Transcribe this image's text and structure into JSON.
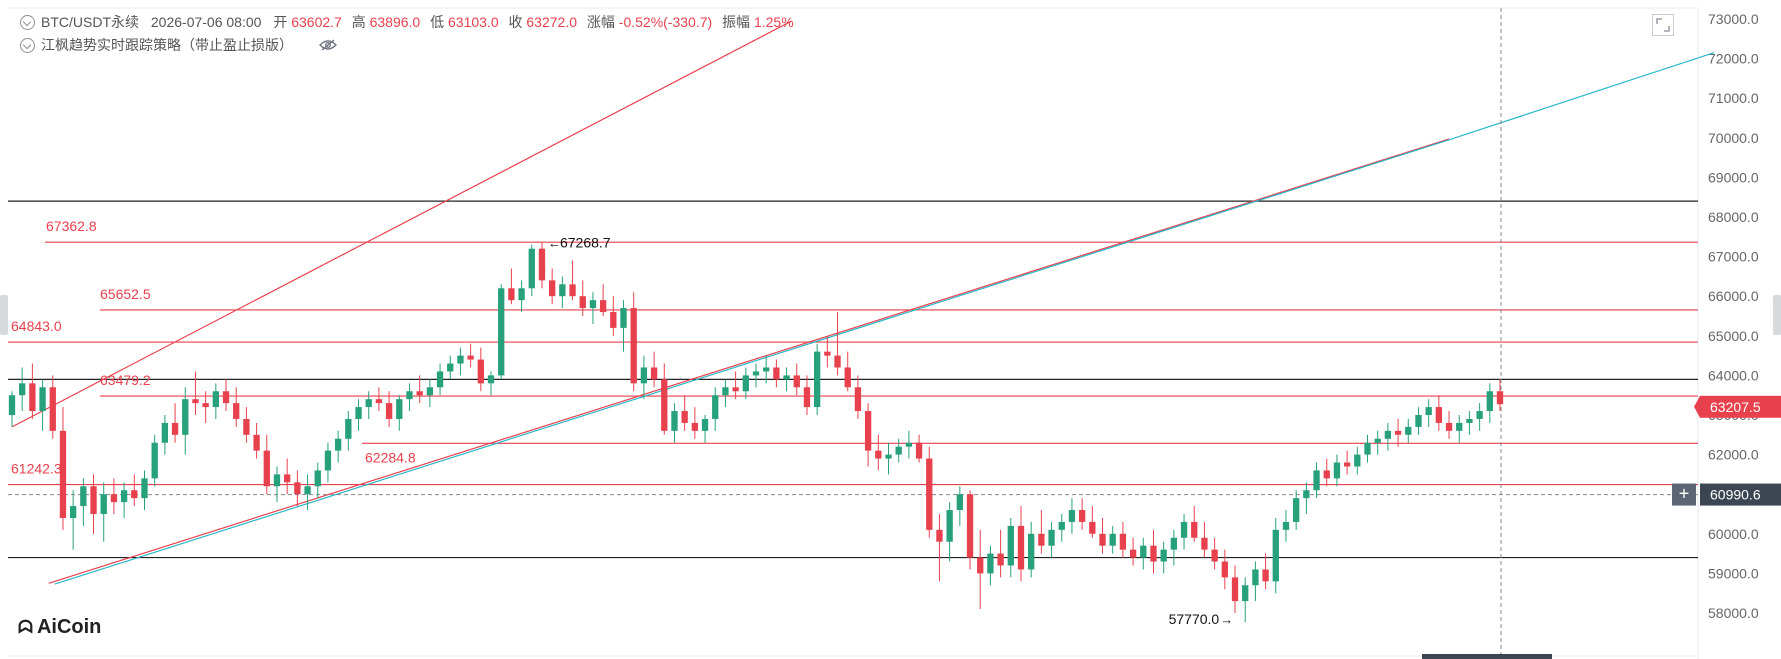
{
  "header": {
    "symbol": "BTC/USDT永续",
    "datetime": "2026-07-06 08:00",
    "open_label": "开",
    "open": "63602.7",
    "high_label": "高",
    "high": "63896.0",
    "low_label": "低",
    "low": "63103.0",
    "close_label": "收",
    "close": "63272.0",
    "change_label": "涨幅",
    "change": "-0.52%(-330.7)",
    "amplitude_label": "振幅",
    "amplitude": "1.25%",
    "indicator": "江枫趋势实时跟踪策略（带止盈止损版）"
  },
  "logo": "AiCoin",
  "icons": [
    "chevron-circle-icon",
    "eye-off-icon",
    "fullscreen-icon",
    "crosshair-plus-icon"
  ],
  "colors": {
    "up": "#26a17b",
    "down": "#e8414e",
    "channel": "#2ab7c9",
    "level_black": "#222222"
  },
  "chart_data": {
    "type": "candlestick",
    "ylim": [
      57600,
      73200
    ],
    "y_ticks": [
      "73000.0",
      "72000.0",
      "71000.0",
      "70000.0",
      "69000.0",
      "68000.0",
      "67000.0",
      "66000.0",
      "65000.0",
      "64000.0",
      "63000.0",
      "62000.0",
      "61000.0",
      "60000.0",
      "59000.0",
      "58000.0"
    ],
    "y_tick_values": [
      73000,
      72000,
      71000,
      70000,
      69000,
      68000,
      67000,
      66000,
      65000,
      64000,
      63000,
      62000,
      61000,
      60000,
      59000,
      58000
    ],
    "current_price": "63207.5",
    "crosshair_price": "60990.6",
    "crosshair_value": 60990.6,
    "red_levels": [
      {
        "label": "67362.8",
        "value": 67362.8
      },
      {
        "label": "65652.5",
        "value": 65652.5
      },
      {
        "label": "64843.0",
        "value": 64843.0
      },
      {
        "label": "63479.2",
        "value": 63479.2
      },
      {
        "label": "62284.8",
        "value": 62284.8
      },
      {
        "label": "61242.3",
        "value": 61242.3
      }
    ],
    "black_levels": [
      68400,
      63900,
      59400
    ],
    "annotations": [
      {
        "label": "67268.7",
        "value": 67268.7
      },
      {
        "label": "57770.0",
        "value": 57770.0
      }
    ],
    "candles_ohlc": [
      [
        63000,
        63600,
        62700,
        63500
      ],
      [
        63500,
        64200,
        63100,
        63800
      ],
      [
        63800,
        64300,
        62900,
        63100
      ],
      [
        63100,
        63900,
        62600,
        63700
      ],
      [
        63700,
        64000,
        62400,
        62600
      ],
      [
        62600,
        63200,
        60100,
        60400
      ],
      [
        60400,
        61100,
        59600,
        60700
      ],
      [
        60700,
        61400,
        60200,
        61200
      ],
      [
        61200,
        61500,
        60000,
        60500
      ],
      [
        60500,
        61300,
        59800,
        61000
      ],
      [
        61000,
        61400,
        60500,
        60800
      ],
      [
        60800,
        61300,
        60400,
        61100
      ],
      [
        61100,
        61500,
        60700,
        60900
      ],
      [
        60900,
        61600,
        60600,
        61400
      ],
      [
        61400,
        62500,
        61200,
        62300
      ],
      [
        62300,
        63000,
        62000,
        62800
      ],
      [
        62800,
        63300,
        62300,
        62500
      ],
      [
        62500,
        63700,
        62000,
        63400
      ],
      [
        63400,
        64100,
        63000,
        63300
      ],
      [
        63300,
        63600,
        62800,
        63200
      ],
      [
        63200,
        63800,
        62900,
        63600
      ],
      [
        63600,
        63900,
        63100,
        63300
      ],
      [
        63300,
        63700,
        62700,
        62900
      ],
      [
        62900,
        63200,
        62300,
        62500
      ],
      [
        62500,
        62800,
        61900,
        62100
      ],
      [
        62100,
        62500,
        61000,
        61200
      ],
      [
        61200,
        61700,
        60800,
        61500
      ],
      [
        61500,
        61900,
        61000,
        61300
      ],
      [
        61300,
        61600,
        60700,
        61000
      ],
      [
        61000,
        61500,
        60600,
        61200
      ],
      [
        61200,
        61800,
        60900,
        61600
      ],
      [
        61600,
        62300,
        61300,
        62100
      ],
      [
        62100,
        62600,
        61800,
        62400
      ],
      [
        62400,
        63100,
        62100,
        62900
      ],
      [
        62900,
        63400,
        62600,
        63200
      ],
      [
        63200,
        63600,
        62900,
        63400
      ],
      [
        63400,
        63700,
        63100,
        63300
      ],
      [
        63300,
        63600,
        62700,
        62900
      ],
      [
        62900,
        63500,
        62600,
        63400
      ],
      [
        63400,
        63800,
        63100,
        63600
      ],
      [
        63600,
        64000,
        63300,
        63500
      ],
      [
        63500,
        63900,
        63200,
        63700
      ],
      [
        63700,
        64300,
        63500,
        64100
      ],
      [
        64100,
        64500,
        63900,
        64300
      ],
      [
        64300,
        64700,
        64000,
        64500
      ],
      [
        64500,
        64800,
        64200,
        64400
      ],
      [
        64400,
        64700,
        63600,
        63800
      ],
      [
        63800,
        64100,
        63500,
        64000
      ],
      [
        64000,
        66300,
        63900,
        66200
      ],
      [
        66200,
        66700,
        65800,
        65900
      ],
      [
        65900,
        66400,
        65600,
        66200
      ],
      [
        66200,
        67300,
        66000,
        67200
      ],
      [
        67200,
        67350,
        66200,
        66400
      ],
      [
        66400,
        66700,
        65800,
        66000
      ],
      [
        66000,
        66500,
        65700,
        66300
      ],
      [
        66300,
        66900,
        65900,
        66000
      ],
      [
        66000,
        66400,
        65500,
        65700
      ],
      [
        65700,
        66100,
        65300,
        65900
      ],
      [
        65900,
        66300,
        65500,
        65600
      ],
      [
        65600,
        66000,
        65000,
        65200
      ],
      [
        65200,
        65900,
        64600,
        65700
      ],
      [
        65700,
        66100,
        63600,
        63800
      ],
      [
        63800,
        64500,
        63400,
        64200
      ],
      [
        64200,
        64600,
        63700,
        63900
      ],
      [
        63900,
        64300,
        62500,
        62600
      ],
      [
        62600,
        63300,
        62300,
        63100
      ],
      [
        63100,
        63500,
        62600,
        62800
      ],
      [
        62800,
        63200,
        62400,
        62600
      ],
      [
        62600,
        63000,
        62300,
        62900
      ],
      [
        62900,
        63700,
        62600,
        63500
      ],
      [
        63500,
        63900,
        63200,
        63700
      ],
      [
        63700,
        64100,
        63400,
        63600
      ],
      [
        63600,
        64200,
        63400,
        64000
      ],
      [
        64000,
        64300,
        63700,
        64100
      ],
      [
        64100,
        64500,
        63800,
        64200
      ],
      [
        64200,
        64400,
        63700,
        63900
      ],
      [
        63900,
        64200,
        63600,
        64000
      ],
      [
        64000,
        64300,
        63500,
        63700
      ],
      [
        63700,
        64000,
        63000,
        63200
      ],
      [
        63200,
        64800,
        63000,
        64600
      ],
      [
        64600,
        65000,
        64200,
        64500
      ],
      [
        64500,
        65600,
        64000,
        64200
      ],
      [
        64200,
        64600,
        63600,
        63700
      ],
      [
        63700,
        64000,
        62900,
        63100
      ],
      [
        63100,
        63300,
        61700,
        62100
      ],
      [
        62100,
        62500,
        61600,
        61900
      ],
      [
        61900,
        62300,
        61500,
        62000
      ],
      [
        62000,
        62400,
        61800,
        62200
      ],
      [
        62200,
        62600,
        61900,
        62300
      ],
      [
        62300,
        62500,
        61800,
        61900
      ],
      [
        61900,
        62200,
        59900,
        60100
      ],
      [
        60100,
        60500,
        58800,
        59800
      ],
      [
        59800,
        60800,
        59300,
        60600
      ],
      [
        60600,
        61200,
        60200,
        61000
      ],
      [
        61000,
        61100,
        59100,
        59400
      ],
      [
        59400,
        60100,
        58100,
        59000
      ],
      [
        59000,
        59700,
        58700,
        59500
      ],
      [
        59500,
        60100,
        58900,
        59200
      ],
      [
        59200,
        60400,
        58900,
        60200
      ],
      [
        60200,
        60700,
        58800,
        59100
      ],
      [
        59100,
        60300,
        58900,
        60000
      ],
      [
        60000,
        60600,
        59500,
        59700
      ],
      [
        59700,
        60300,
        59400,
        60100
      ],
      [
        60100,
        60500,
        59800,
        60300
      ],
      [
        60300,
        60900,
        60000,
        60600
      ],
      [
        60600,
        60900,
        60100,
        60300
      ],
      [
        60300,
        60700,
        59900,
        60000
      ],
      [
        60000,
        60400,
        59500,
        59700
      ],
      [
        59700,
        60200,
        59500,
        60000
      ],
      [
        60000,
        60300,
        59400,
        59600
      ],
      [
        59600,
        59900,
        59200,
        59400
      ],
      [
        59400,
        59900,
        59100,
        59700
      ],
      [
        59700,
        60100,
        59000,
        59300
      ],
      [
        59300,
        59800,
        59000,
        59600
      ],
      [
        59600,
        60100,
        59200,
        59900
      ],
      [
        59900,
        60500,
        59600,
        60300
      ],
      [
        60300,
        60700,
        59800,
        59900
      ],
      [
        59900,
        60300,
        59400,
        59600
      ],
      [
        59600,
        59900,
        59100,
        59300
      ],
      [
        59300,
        59600,
        58600,
        58900
      ],
      [
        58900,
        59200,
        58000,
        58300
      ],
      [
        58300,
        58900,
        57770,
        58700
      ],
      [
        58700,
        59300,
        58300,
        59100
      ],
      [
        59100,
        59500,
        58600,
        58800
      ],
      [
        58800,
        60400,
        58500,
        60100
      ],
      [
        60100,
        60600,
        59800,
        60300
      ],
      [
        60300,
        61100,
        60100,
        60900
      ],
      [
        60900,
        61300,
        60500,
        61100
      ],
      [
        61100,
        61800,
        60900,
        61600
      ],
      [
        61600,
        61900,
        61200,
        61400
      ],
      [
        61400,
        62000,
        61200,
        61800
      ],
      [
        61800,
        62100,
        61500,
        61700
      ],
      [
        61700,
        62200,
        61500,
        62000
      ],
      [
        62000,
        62500,
        61800,
        62300
      ],
      [
        62300,
        62600,
        62000,
        62400
      ],
      [
        62400,
        62800,
        62100,
        62600
      ],
      [
        62600,
        62900,
        62200,
        62500
      ],
      [
        62500,
        62900,
        62300,
        62700
      ],
      [
        62700,
        63200,
        62500,
        63000
      ],
      [
        63000,
        63400,
        62700,
        63200
      ],
      [
        63200,
        63500,
        62600,
        62800
      ],
      [
        62800,
        63100,
        62400,
        62600
      ],
      [
        62600,
        63000,
        62300,
        62800
      ],
      [
        62800,
        63100,
        62500,
        62900
      ],
      [
        62900,
        63300,
        62600,
        63100
      ],
      [
        63100,
        63800,
        62800,
        63600
      ],
      [
        63600,
        63896,
        63103,
        63272
      ]
    ]
  }
}
